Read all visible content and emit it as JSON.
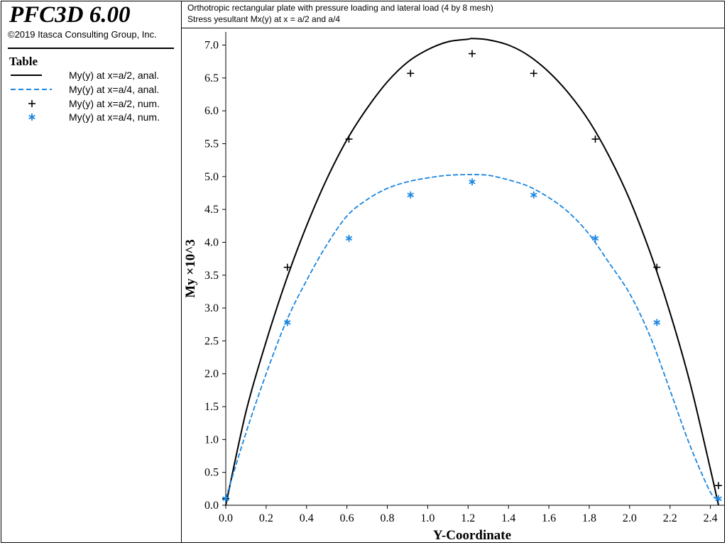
{
  "app": {
    "title": "PFC3D 6.00",
    "copyright": "©2019 Itasca Consulting Group, Inc."
  },
  "legend": {
    "heading": "Table",
    "items": [
      {
        "label": "My(y) at x=a/2, anal.",
        "style": "solid-line",
        "color": "#000000"
      },
      {
        "label": "My(y) at x=a/4, anal.",
        "style": "dashed-line",
        "color": "#1a86e0"
      },
      {
        "label": "My(y) at x=a/2, num.",
        "style": "plus-marker",
        "color": "#000000"
      },
      {
        "label": "My(y) at x=a/4, num.",
        "style": "asterisk-marker",
        "color": "#1a86e0"
      }
    ]
  },
  "header": {
    "line1": "Orthotropic rectangular plate with pressure loading and lateral load (4 by 8 mesh)",
    "line2": "Stress yesultant Mx(y) at x = a/2 and a/4"
  },
  "chart_data": {
    "type": "line",
    "xlabel": "Y-Coordinate",
    "ylabel": "My ×10^3",
    "xlim": [
      0.0,
      2.44
    ],
    "ylim": [
      0.0,
      7.2
    ],
    "xticks": [
      "0.0",
      "0.2",
      "0.4",
      "0.6",
      "0.8",
      "1.0",
      "1.2",
      "1.4",
      "1.6",
      "1.8",
      "2.0",
      "2.2",
      "2.4"
    ],
    "xtick_values": [
      0.0,
      0.2,
      0.4,
      0.6,
      0.8,
      1.0,
      1.2,
      1.4,
      1.6,
      1.8,
      2.0,
      2.2,
      2.4
    ],
    "yticks": [
      "0.0",
      "0.5",
      "1.0",
      "1.5",
      "2.0",
      "2.5",
      "3.0",
      "3.5",
      "4.0",
      "4.5",
      "5.0",
      "5.5",
      "6.0",
      "6.5",
      "7.0"
    ],
    "ytick_values": [
      0.0,
      0.5,
      1.0,
      1.5,
      2.0,
      2.5,
      3.0,
      3.5,
      4.0,
      4.5,
      5.0,
      5.5,
      6.0,
      6.5,
      7.0
    ],
    "grid": false,
    "legend_position": "left panel",
    "series": [
      {
        "name": "My(y) at x=a/2, anal.",
        "kind": "line",
        "dash": "solid",
        "color": "#000000",
        "x": [
          0.0,
          0.1,
          0.2,
          0.3,
          0.4,
          0.5,
          0.6,
          0.7,
          0.8,
          0.9,
          1.0,
          1.1,
          1.2,
          1.22,
          1.3,
          1.4,
          1.5,
          1.6,
          1.7,
          1.8,
          1.9,
          2.0,
          2.1,
          2.2,
          2.3,
          2.4,
          2.44
        ],
        "y": [
          0.0,
          1.42,
          2.49,
          3.43,
          4.25,
          4.96,
          5.56,
          6.04,
          6.44,
          6.74,
          6.93,
          7.05,
          7.09,
          7.1,
          7.08,
          7.0,
          6.84,
          6.59,
          6.26,
          5.84,
          5.3,
          4.65,
          3.86,
          2.93,
          1.85,
          0.55,
          0.0
        ]
      },
      {
        "name": "My(y) at x=a/4, anal.",
        "kind": "line",
        "dash": "dashed",
        "color": "#1a86e0",
        "x": [
          0.0,
          0.1,
          0.2,
          0.3,
          0.4,
          0.5,
          0.6,
          0.7,
          0.8,
          0.9,
          1.0,
          1.1,
          1.2,
          1.22,
          1.3,
          1.4,
          1.5,
          1.6,
          1.7,
          1.8,
          1.9,
          2.0,
          2.1,
          2.2,
          2.3,
          2.4,
          2.44
        ],
        "y": [
          0.1,
          1.1,
          2.0,
          2.8,
          3.42,
          3.96,
          4.4,
          4.65,
          4.82,
          4.92,
          4.98,
          5.02,
          5.03,
          5.03,
          5.02,
          4.95,
          4.85,
          4.68,
          4.45,
          4.12,
          3.68,
          3.22,
          2.58,
          1.75,
          0.9,
          0.2,
          0.1
        ]
      },
      {
        "name": "My(y) at x=a/2, num.",
        "kind": "markers",
        "marker": "plus",
        "color": "#000000",
        "x": [
          0.0,
          0.305,
          0.61,
          0.915,
          1.22,
          1.525,
          1.83,
          2.135,
          2.44
        ],
        "y": [
          0.1,
          3.62,
          5.57,
          6.57,
          6.87,
          6.57,
          5.57,
          3.62,
          0.3
        ]
      },
      {
        "name": "My(y) at x=a/4, num.",
        "kind": "markers",
        "marker": "asterisk",
        "color": "#1a86e0",
        "x": [
          0.0,
          0.305,
          0.61,
          0.915,
          1.22,
          1.525,
          1.83,
          2.135,
          2.44
        ],
        "y": [
          0.1,
          2.78,
          4.06,
          4.72,
          4.92,
          4.72,
          4.06,
          2.78,
          0.1
        ]
      }
    ]
  }
}
